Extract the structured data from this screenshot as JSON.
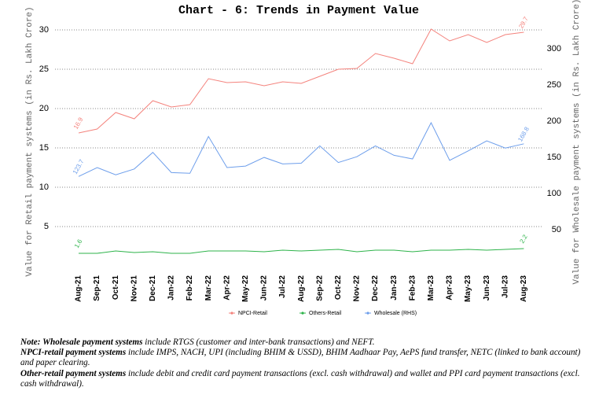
{
  "chart_data": {
    "type": "line",
    "title": "Chart - 6: Trends in Payment Value",
    "y_label": "Value for Retail payment systems (in Rs. Lakh Crore)",
    "y2_label": "Value for Wholesale payment systems (in Rs. Lakh Crore)",
    "categories": [
      "Aug-21",
      "Sep-21",
      "Oct-21",
      "Nov-21",
      "Dec-21",
      "Jan-22",
      "Feb-22",
      "Mar-22",
      "Apr-22",
      "May-22",
      "Jun-22",
      "Jul-22",
      "Aug-22",
      "Sep-22",
      "Oct-22",
      "Nov-22",
      "Dec-22",
      "Jan-23",
      "Feb-23",
      "Mar-23",
      "Apr-23",
      "May-23",
      "Jun-23",
      "Jul-23",
      "Aug-23"
    ],
    "series": [
      {
        "name": "NPCI-Retail",
        "color": "#f4837d",
        "values": [
          16.9,
          17.4,
          19.5,
          18.7,
          21.0,
          20.2,
          20.5,
          23.8,
          23.3,
          23.4,
          22.9,
          23.4,
          23.2,
          24.1,
          25.0,
          25.1,
          27.0,
          26.4,
          25.7,
          30.1,
          28.6,
          29.4,
          28.4,
          29.4,
          29.7
        ]
      },
      {
        "name": "Others-Retail",
        "color": "#2db34a",
        "values": [
          1.6,
          1.6,
          1.9,
          1.7,
          1.8,
          1.6,
          1.6,
          1.9,
          1.9,
          1.9,
          1.8,
          2.0,
          1.9,
          2.0,
          2.1,
          1.8,
          2.0,
          2.0,
          1.8,
          2.0,
          2.0,
          2.1,
          2.0,
          2.1,
          2.2
        ]
      },
      {
        "name": "Wholesale (RHS)",
        "color": "#6d9eeb",
        "axis": "y2",
        "values": [
          123.7,
          136,
          126,
          134,
          157,
          129,
          128,
          179,
          136,
          138,
          150,
          141,
          142,
          166,
          143,
          151,
          166,
          153,
          148,
          198,
          146,
          159,
          173,
          163,
          168.8
        ]
      }
    ],
    "ylim": [
      0,
      33
    ],
    "yticks": [
      5,
      10,
      15,
      20,
      25,
      30
    ],
    "y2lim": [
      0,
      359
    ],
    "y2ticks": [
      50,
      100,
      150,
      200,
      250,
      300
    ],
    "grid": true,
    "legend": "bottom"
  },
  "notes": [
    {
      "bold": "Note: Wholesale payment systems",
      "text": " include RTGS (customer and inter-bank transactions) and NEFT."
    },
    {
      "bold": "NPCI-retail payment systems",
      "text": " include IMPS, NACH, UPI (including BHIM & USSD), BHIM Aadhaar Pay, AePS fund transfer, NETC (linked to bank account) and paper clearing."
    },
    {
      "bold": "Other-retail payment systems",
      "text": " include debit and credit card payment transactions (excl. cash withdrawal) and wallet and PPI card payment transactions (excl. cash withdrawal)."
    }
  ]
}
